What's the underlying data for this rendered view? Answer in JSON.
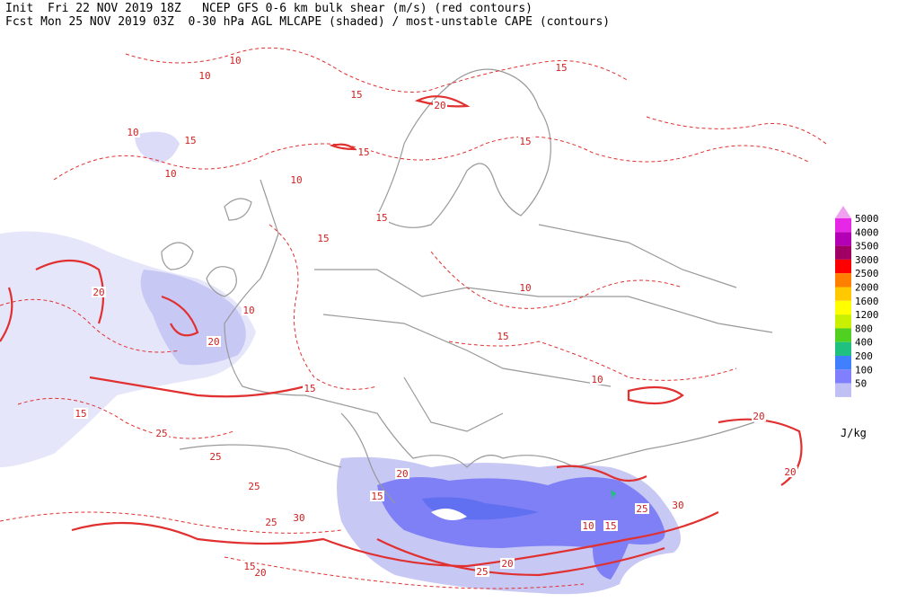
{
  "header": {
    "line1": "Init  Fri 22 NOV 2019 18Z   NCEP GFS 0-6 km bulk shear (m/s) (red contours)",
    "line2": "Fcst Mon 25 NOV 2019 03Z  0-30 hPa AGL MLCAPE (shaded) / most-unstable CAPE (contours)"
  },
  "legend": {
    "levels": [
      5000,
      4000,
      3500,
      3000,
      2500,
      2000,
      1600,
      1200,
      800,
      400,
      200,
      100,
      50
    ],
    "colors": [
      "#e628e6",
      "#b400b4",
      "#a00064",
      "#ff0000",
      "#ff8000",
      "#ffc800",
      "#ffff00",
      "#c8f000",
      "#50d020",
      "#20c080",
      "#4080ff",
      "#8080ff",
      "#c0c0f5"
    ],
    "unit": "J/kg"
  },
  "contour_labels": [
    10,
    10,
    15,
    20,
    15,
    15,
    15,
    10,
    10,
    10,
    15,
    15,
    15,
    10,
    15,
    20,
    20,
    10,
    15,
    15,
    25,
    25,
    25,
    20,
    15,
    20,
    25,
    10,
    15,
    25,
    30,
    10,
    20,
    20,
    25,
    30,
    20,
    15
  ]
}
